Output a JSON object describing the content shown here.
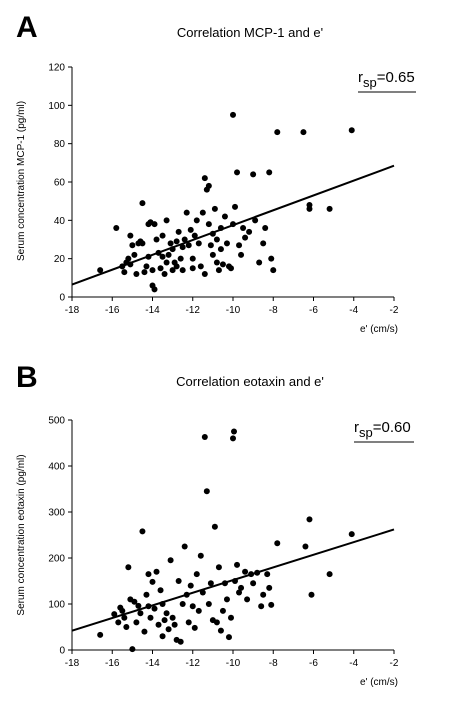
{
  "chart_data": [
    {
      "type": "scatter",
      "panel": "A",
      "title": "Correlation MCP-1 and e'",
      "xlabel": "e' (cm/s)",
      "ylabel": "Serum concentration MCP-1 (pg/ml)",
      "xlim": [
        -18,
        -2
      ],
      "ylim": [
        0,
        120
      ],
      "xticks": [
        -18,
        -16,
        -14,
        -12,
        -10,
        -8,
        -6,
        -4,
        -2
      ],
      "yticks": [
        0,
        20,
        40,
        60,
        80,
        100,
        120
      ],
      "annotation": {
        "r_main": "r",
        "r_sub": "sp",
        "r_value": "=0.65"
      },
      "trendline": {
        "x": [
          -18,
          -2
        ],
        "y": [
          6.5,
          68.5
        ]
      },
      "points": [
        [
          -16.6,
          14
        ],
        [
          -15.8,
          36
        ],
        [
          -15.5,
          16
        ],
        [
          -15.4,
          13
        ],
        [
          -15.3,
          18
        ],
        [
          -15.2,
          20
        ],
        [
          -15.1,
          17
        ],
        [
          -15.1,
          32
        ],
        [
          -15.0,
          27
        ],
        [
          -14.9,
          22
        ],
        [
          -14.8,
          12
        ],
        [
          -14.7,
          28
        ],
        [
          -14.6,
          29
        ],
        [
          -14.5,
          28
        ],
        [
          -14.5,
          49
        ],
        [
          -14.4,
          13
        ],
        [
          -14.3,
          16
        ],
        [
          -14.2,
          21
        ],
        [
          -14.2,
          38
        ],
        [
          -14.1,
          39
        ],
        [
          -14.0,
          14
        ],
        [
          -14.0,
          6
        ],
        [
          -13.9,
          4
        ],
        [
          -13.9,
          38
        ],
        [
          -13.8,
          30
        ],
        [
          -13.7,
          23
        ],
        [
          -13.6,
          15
        ],
        [
          -13.5,
          21
        ],
        [
          -13.5,
          32
        ],
        [
          -13.4,
          12
        ],
        [
          -13.3,
          18
        ],
        [
          -13.3,
          40
        ],
        [
          -13.2,
          22
        ],
        [
          -13.1,
          28
        ],
        [
          -13.0,
          14
        ],
        [
          -13.0,
          25
        ],
        [
          -12.9,
          18
        ],
        [
          -12.8,
          16
        ],
        [
          -12.8,
          29
        ],
        [
          -12.7,
          34
        ],
        [
          -12.6,
          20
        ],
        [
          -12.5,
          14
        ],
        [
          -12.5,
          26
        ],
        [
          -12.4,
          30
        ],
        [
          -12.3,
          44
        ],
        [
          -12.2,
          27
        ],
        [
          -12.1,
          35
        ],
        [
          -12.0,
          20
        ],
        [
          -12.0,
          15
        ],
        [
          -11.9,
          32
        ],
        [
          -11.8,
          40
        ],
        [
          -11.7,
          28
        ],
        [
          -11.6,
          16
        ],
        [
          -11.5,
          44
        ],
        [
          -11.4,
          62
        ],
        [
          -11.4,
          12
        ],
        [
          -11.3,
          56
        ],
        [
          -11.2,
          38
        ],
        [
          -11.2,
          58
        ],
        [
          -11.1,
          27
        ],
        [
          -11.0,
          22
        ],
        [
          -11.0,
          33
        ],
        [
          -10.9,
          46
        ],
        [
          -10.8,
          18
        ],
        [
          -10.8,
          30
        ],
        [
          -10.7,
          14
        ],
        [
          -10.6,
          25
        ],
        [
          -10.6,
          36
        ],
        [
          -10.5,
          17
        ],
        [
          -10.4,
          42
        ],
        [
          -10.3,
          28
        ],
        [
          -10.2,
          16
        ],
        [
          -10.1,
          15
        ],
        [
          -10.0,
          95
        ],
        [
          -10.0,
          38
        ],
        [
          -9.9,
          47
        ],
        [
          -9.8,
          65
        ],
        [
          -9.7,
          27
        ],
        [
          -9.6,
          22
        ],
        [
          -9.5,
          36
        ],
        [
          -9.4,
          31
        ],
        [
          -9.2,
          34
        ],
        [
          -9.0,
          64
        ],
        [
          -8.9,
          40
        ],
        [
          -8.7,
          18
        ],
        [
          -8.5,
          28
        ],
        [
          -8.4,
          36
        ],
        [
          -8.2,
          65
        ],
        [
          -8.1,
          20
        ],
        [
          -8.0,
          14
        ],
        [
          -7.8,
          86
        ],
        [
          -6.5,
          86
        ],
        [
          -6.2,
          48
        ],
        [
          -6.2,
          46
        ],
        [
          -5.2,
          46
        ],
        [
          -4.1,
          87
        ]
      ]
    },
    {
      "type": "scatter",
      "panel": "B",
      "title": "Correlation eotaxin and e'",
      "xlabel": "e' (cm/s)",
      "ylabel": "Serum concentration eotaxin (pg/ml)",
      "xlim": [
        -18,
        -2
      ],
      "ylim": [
        0,
        500
      ],
      "xticks": [
        -18,
        -16,
        -14,
        -12,
        -10,
        -8,
        -6,
        -4,
        -2
      ],
      "yticks": [
        0,
        100,
        200,
        300,
        400,
        500
      ],
      "annotation": {
        "r_main": "r",
        "r_sub": "sp",
        "r_value": "=0.60"
      },
      "trendline": {
        "x": [
          -18,
          -2
        ],
        "y": [
          42,
          262
        ]
      },
      "points": [
        [
          -16.6,
          33
        ],
        [
          -15.9,
          78
        ],
        [
          -15.7,
          60
        ],
        [
          -15.6,
          92
        ],
        [
          -15.5,
          85
        ],
        [
          -15.4,
          70
        ],
        [
          -15.3,
          50
        ],
        [
          -15.2,
          180
        ],
        [
          -15.1,
          110
        ],
        [
          -15.0,
          2
        ],
        [
          -14.9,
          105
        ],
        [
          -14.8,
          60
        ],
        [
          -14.7,
          96
        ],
        [
          -14.6,
          80
        ],
        [
          -14.5,
          258
        ],
        [
          -14.4,
          40
        ],
        [
          -14.3,
          120
        ],
        [
          -14.2,
          165
        ],
        [
          -14.2,
          95
        ],
        [
          -14.1,
          70
        ],
        [
          -14.0,
          148
        ],
        [
          -13.9,
          90
        ],
        [
          -13.8,
          170
        ],
        [
          -13.7,
          55
        ],
        [
          -13.6,
          130
        ],
        [
          -13.5,
          30
        ],
        [
          -13.5,
          100
        ],
        [
          -13.4,
          65
        ],
        [
          -13.3,
          80
        ],
        [
          -13.2,
          45
        ],
        [
          -13.1,
          195
        ],
        [
          -13.0,
          70
        ],
        [
          -12.9,
          55
        ],
        [
          -12.8,
          22
        ],
        [
          -12.7,
          150
        ],
        [
          -12.6,
          18
        ],
        [
          -12.5,
          100
        ],
        [
          -12.4,
          225
        ],
        [
          -12.3,
          120
        ],
        [
          -12.2,
          60
        ],
        [
          -12.1,
          140
        ],
        [
          -12.0,
          95
        ],
        [
          -11.9,
          48
        ],
        [
          -11.8,
          165
        ],
        [
          -11.7,
          85
        ],
        [
          -11.6,
          205
        ],
        [
          -11.5,
          125
        ],
        [
          -11.4,
          463
        ],
        [
          -11.3,
          345
        ],
        [
          -11.2,
          100
        ],
        [
          -11.1,
          145
        ],
        [
          -11.0,
          65
        ],
        [
          -10.9,
          268
        ],
        [
          -10.8,
          60
        ],
        [
          -10.7,
          180
        ],
        [
          -10.6,
          42
        ],
        [
          -10.5,
          85
        ],
        [
          -10.4,
          145
        ],
        [
          -10.3,
          110
        ],
        [
          -10.2,
          28
        ],
        [
          -10.1,
          70
        ],
        [
          -10.0,
          460
        ],
        [
          -9.95,
          475
        ],
        [
          -9.9,
          150
        ],
        [
          -9.8,
          185
        ],
        [
          -9.7,
          125
        ],
        [
          -9.6,
          135
        ],
        [
          -9.4,
          170
        ],
        [
          -9.3,
          110
        ],
        [
          -9.1,
          165
        ],
        [
          -9.0,
          145
        ],
        [
          -8.8,
          168
        ],
        [
          -8.6,
          95
        ],
        [
          -8.5,
          120
        ],
        [
          -8.3,
          165
        ],
        [
          -8.2,
          135
        ],
        [
          -8.1,
          98
        ],
        [
          -7.8,
          232
        ],
        [
          -6.4,
          225
        ],
        [
          -6.2,
          284
        ],
        [
          -6.1,
          120
        ],
        [
          -5.2,
          165
        ],
        [
          -4.1,
          252
        ]
      ]
    }
  ]
}
